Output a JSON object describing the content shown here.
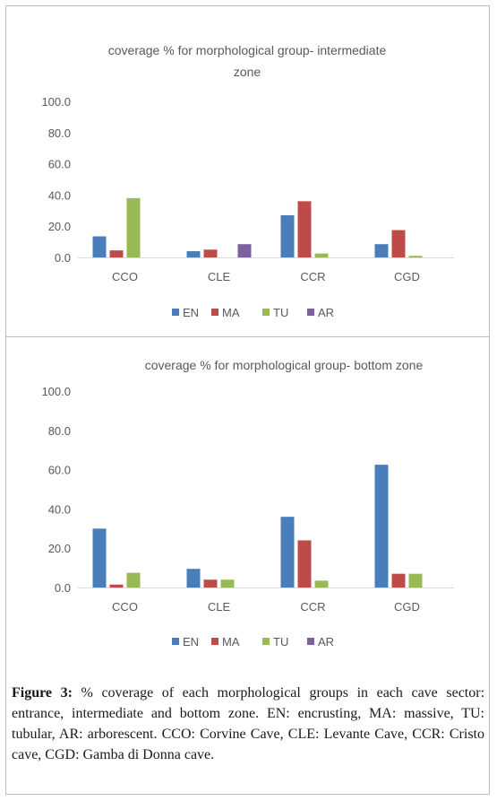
{
  "chart_data": [
    {
      "type": "bar",
      "title_lines": [
        "coverage % for morphological group- intermediate",
        "zone"
      ],
      "categories": [
        "CCO",
        "CLE",
        "CCR",
        "CGD"
      ],
      "yticks": [
        "0.0",
        "20.0",
        "40.0",
        "60.0",
        "80.0",
        "100.0"
      ],
      "ylim": [
        0,
        100
      ],
      "grid": false,
      "legend_position": "bottom",
      "series": [
        {
          "name": "EN",
          "color": "#4a7ebb",
          "values": [
            13.5,
            4.0,
            27.0,
            8.5
          ]
        },
        {
          "name": "MA",
          "color": "#be4b48",
          "values": [
            4.5,
            5.0,
            36.0,
            17.5
          ]
        },
        {
          "name": "TU",
          "color": "#98b954",
          "values": [
            38.0,
            0,
            2.5,
            1.0
          ]
        },
        {
          "name": "AR",
          "color": "#7d60a0",
          "values": [
            0,
            8.5,
            0,
            0
          ]
        }
      ]
    },
    {
      "type": "bar",
      "title_lines": [
        "coverage % for morphological group- bottom zone"
      ],
      "categories": [
        "CCO",
        "CLE",
        "CCR",
        "CGD"
      ],
      "yticks": [
        "0.0",
        "20.0",
        "40.0",
        "60.0",
        "80.0",
        "100.0"
      ],
      "ylim": [
        0,
        100
      ],
      "grid": false,
      "legend_position": "bottom",
      "series": [
        {
          "name": "EN",
          "color": "#4a7ebb",
          "values": [
            30.0,
            9.5,
            36.0,
            62.5
          ]
        },
        {
          "name": "MA",
          "color": "#be4b48",
          "values": [
            1.5,
            4.0,
            24.0,
            7.0
          ]
        },
        {
          "name": "TU",
          "color": "#98b954",
          "values": [
            7.5,
            4.0,
            3.5,
            7.0
          ]
        },
        {
          "name": "AR",
          "color": "#7d60a0",
          "values": [
            0,
            0,
            0,
            0
          ]
        }
      ]
    }
  ],
  "caption": {
    "label": "Figure 3:",
    "text": " % coverage of each morphological groups in each cave sector: entrance, intermediate and bottom zone. EN: encrusting, MA: massive, TU: tubular, AR: arborescent. CCO: Corvine Cave, CLE: Levante Cave, CCR: Cristo cave, CGD: Gamba di Donna cave."
  }
}
